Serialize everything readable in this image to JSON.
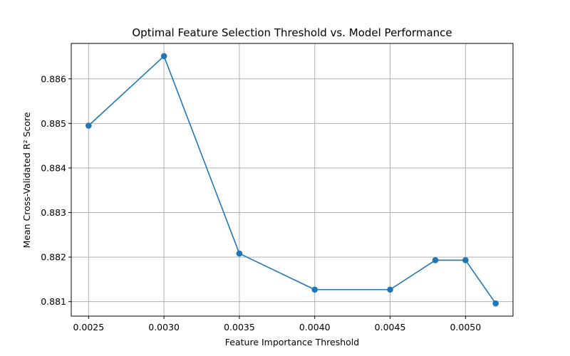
{
  "chart_data": {
    "type": "line",
    "title": "Optimal Feature Selection Threshold vs. Model Performance",
    "xlabel": "Feature Importance Threshold",
    "ylabel": "Mean Cross-Validated R² Score",
    "x": [
      0.0025,
      0.003,
      0.0035,
      0.004,
      0.0045,
      0.0048,
      0.005,
      0.0052
    ],
    "series": [
      {
        "values": [
          0.88495,
          0.88651,
          0.88208,
          0.88127,
          0.88127,
          0.88193,
          0.88193,
          0.88096
        ]
      }
    ],
    "xlim": [
      0.002385,
      0.005315
    ],
    "ylim": [
      0.880675,
      0.886795
    ],
    "xticks": [
      0.0025,
      0.003,
      0.0035,
      0.004,
      0.0045,
      0.005
    ],
    "xtick_labels": [
      "0.0025",
      "0.0030",
      "0.0035",
      "0.0040",
      "0.0045",
      "0.0050"
    ],
    "yticks": [
      0.881,
      0.882,
      0.883,
      0.884,
      0.885,
      0.886
    ],
    "ytick_labels": [
      "0.881",
      "0.882",
      "0.883",
      "0.884",
      "0.885",
      "0.886"
    ],
    "grid": true,
    "line_color": "#1f77b4",
    "marker": "circle"
  }
}
